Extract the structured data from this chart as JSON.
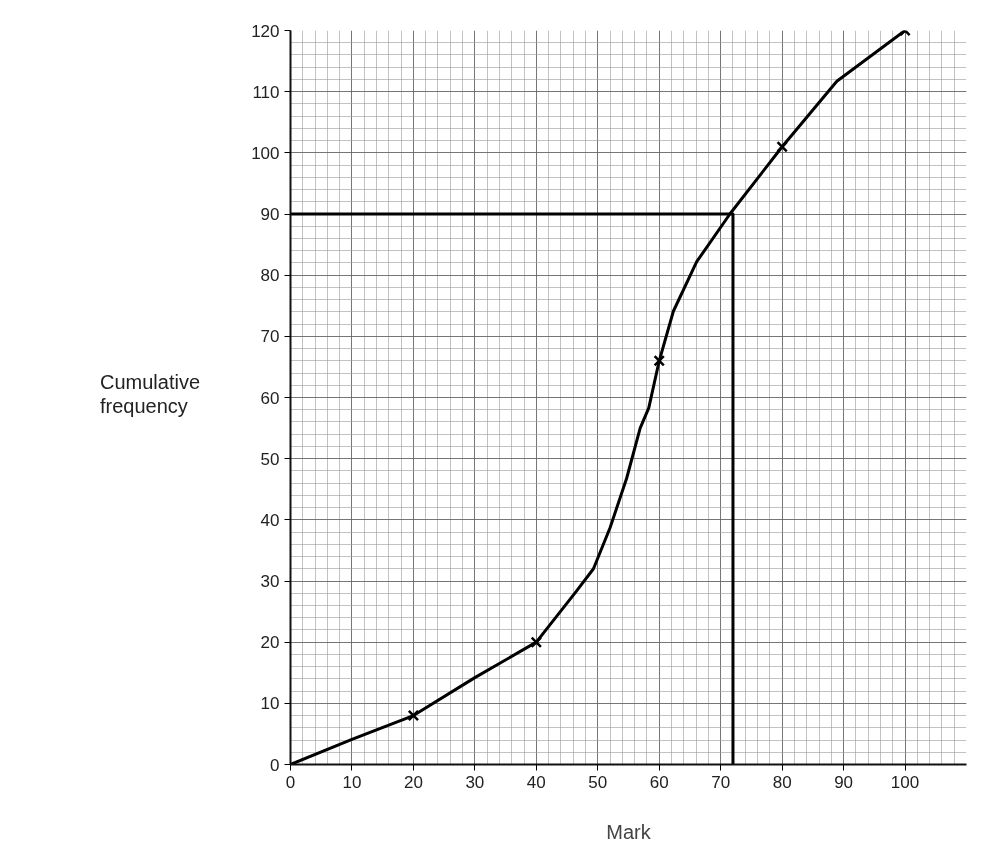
{
  "chart_data": {
    "type": "line",
    "xlabel": "Mark",
    "ylabel": "Cumulative frequency",
    "xlim": [
      0,
      110
    ],
    "ylim": [
      0,
      120
    ],
    "xticks": [
      0,
      10,
      20,
      30,
      40,
      50,
      60,
      70,
      80,
      90,
      100
    ],
    "yticks": [
      0,
      10,
      20,
      30,
      40,
      50,
      60,
      70,
      80,
      90,
      100,
      110,
      120
    ],
    "grid": true,
    "series": [
      {
        "color": "#000000",
        "marker": "none",
        "line_style": "solid",
        "x": [
          0,
          10,
          20,
          30,
          40,
          46.5,
          49.3,
          52,
          54.7,
          56.9,
          58.3,
          60,
          62.3,
          66.1,
          71.5,
          80,
          88.9,
          100
        ],
        "values": [
          0,
          4.1,
          8,
          14.2,
          20,
          28.3,
          32,
          38.7,
          46.8,
          55,
          58.3,
          66,
          74.1,
          82.2,
          90,
          101,
          111.7,
          120
        ]
      },
      {
        "type": "scatter",
        "color": "#000000",
        "marker": "cross",
        "x": [
          20,
          40,
          60,
          80,
          100
        ],
        "values": [
          8,
          20,
          66,
          101,
          120
        ]
      },
      {
        "color": "#000000",
        "marker": "none",
        "line_style": "solid",
        "x": [
          0,
          72,
          72
        ],
        "values": [
          90,
          90,
          0
        ]
      }
    ]
  }
}
